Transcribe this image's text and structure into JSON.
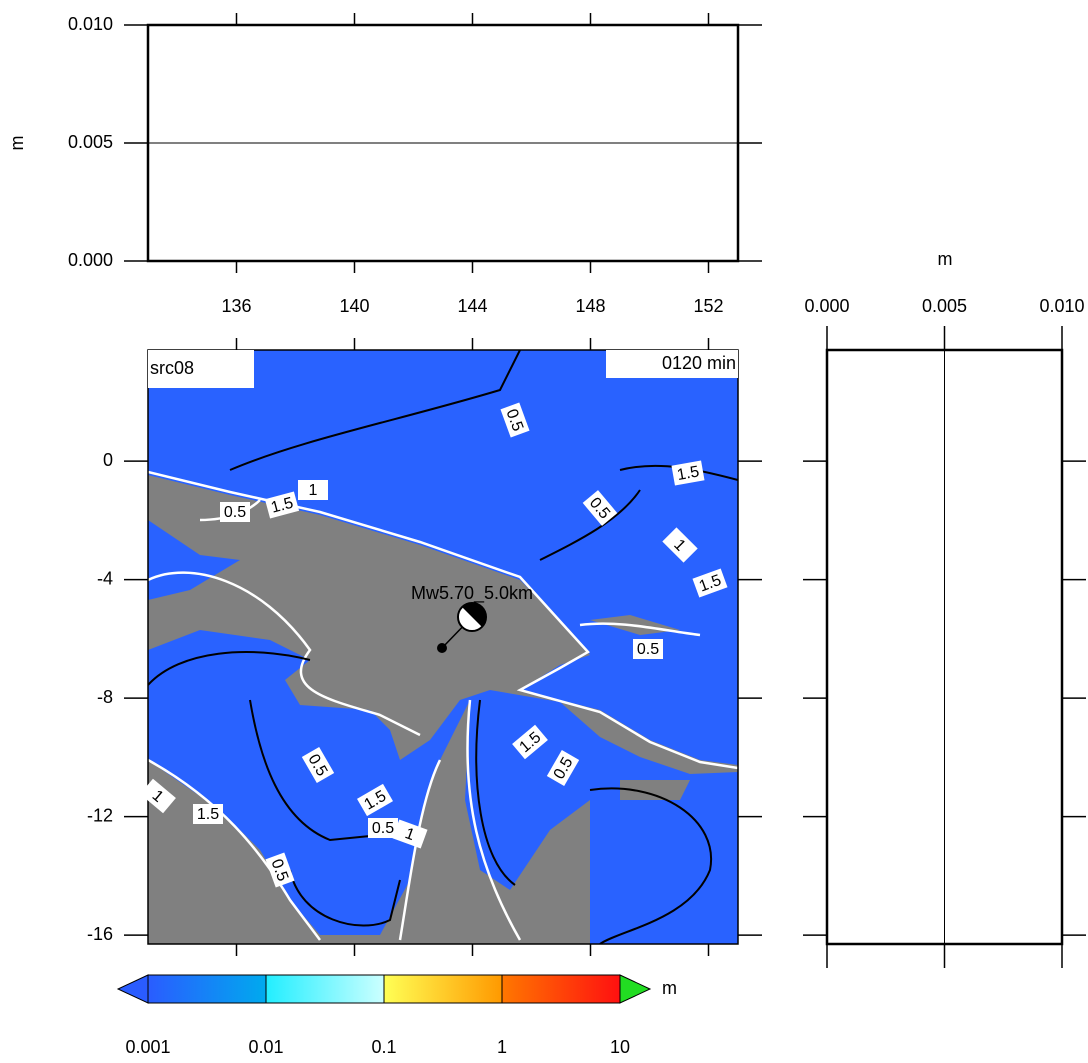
{
  "top_panel": {
    "ylabel": "m",
    "ylim": [
      0,
      0.01
    ],
    "yticks": [
      {
        "value": 0,
        "label": "0.000"
      },
      {
        "value": 0.005,
        "label": "0.005"
      },
      {
        "value": 0.01,
        "label": "0.010"
      }
    ],
    "xlim": [
      133,
      153
    ],
    "xticks": [
      136,
      140,
      144,
      148,
      152
    ]
  },
  "map": {
    "title": "src08",
    "time": "0120 min",
    "xlim": [
      133,
      153
    ],
    "ylim": [
      -16.3,
      3.75
    ],
    "yticks": [
      0,
      -4,
      -8,
      -12,
      -16
    ],
    "event_label": "Mw5.70_5.0km",
    "contour_labels": [
      0.5,
      1.5,
      0.5,
      1,
      1.5,
      0.5,
      1.5,
      1,
      0.5,
      1.5,
      0.5,
      0.5,
      1,
      1.5,
      1.5,
      0.5,
      1,
      0.5
    ]
  },
  "side_panel": {
    "xlabel": "m",
    "xlim": [
      0,
      0.01
    ],
    "xticks": [
      {
        "value": 0,
        "label": "0.000"
      },
      {
        "value": 0.005,
        "label": "0.005"
      },
      {
        "value": 0.01,
        "label": "0.010"
      }
    ]
  },
  "colorbar": {
    "unit": "m",
    "lim": [
      0.001,
      10
    ],
    "ticks": [
      0.001,
      0.01,
      0.1,
      1,
      10
    ]
  }
}
